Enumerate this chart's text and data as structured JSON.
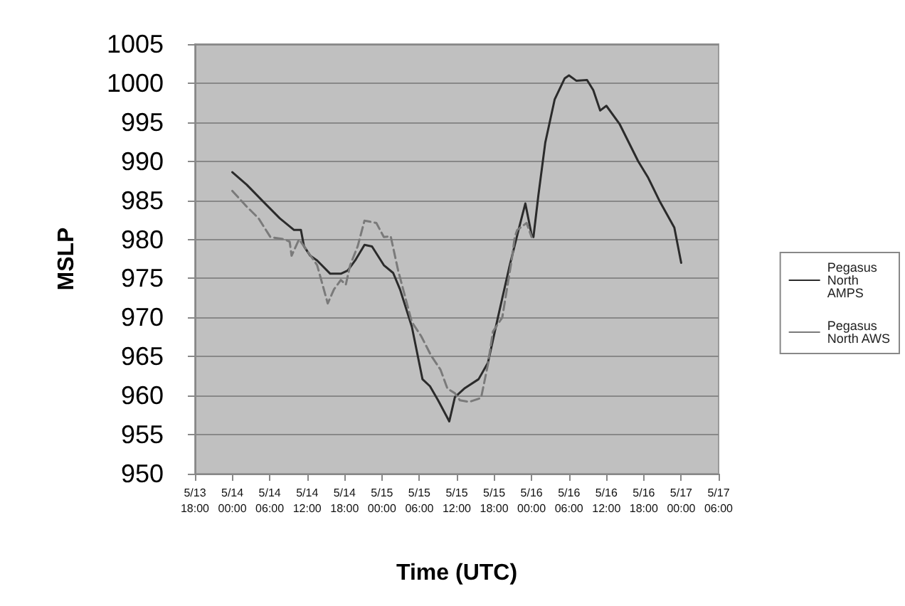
{
  "chart_data": {
    "type": "line",
    "xlabel": "Time (UTC)",
    "ylabel": "MSLP",
    "xlim": [
      "--05-13T18:00",
      "--05-17T06:00"
    ],
    "ylim": [
      950,
      1005
    ],
    "xticks": [
      {
        "value": "--05-13T18:00",
        "label": "5/13\n18:00"
      },
      {
        "value": "--05-14T00:00",
        "label": "5/14\n00:00"
      },
      {
        "value": "--05-14T06:00",
        "label": "5/14\n06:00"
      },
      {
        "value": "--05-14T12:00",
        "label": "5/14\n12:00"
      },
      {
        "value": "--05-14T18:00",
        "label": "5/14\n18:00"
      },
      {
        "value": "--05-15T00:00",
        "label": "5/15\n00:00"
      },
      {
        "value": "--05-15T06:00",
        "label": "5/15\n06:00"
      },
      {
        "value": "--05-15T12:00",
        "label": "5/15\n12:00"
      },
      {
        "value": "--05-15T18:00",
        "label": "5/15\n18:00"
      },
      {
        "value": "--05-16T00:00",
        "label": "5/16\n00:00"
      },
      {
        "value": "--05-16T06:00",
        "label": "5/16\n06:00"
      },
      {
        "value": "--05-16T12:00",
        "label": "5/16\n12:00"
      },
      {
        "value": "--05-16T18:00",
        "label": "5/16\n18:00"
      },
      {
        "value": "--05-17T00:00",
        "label": "5/17\n00:00"
      },
      {
        "value": "--05-17T06:00",
        "label": "5/17\n06:00"
      }
    ],
    "yticks": [
      950,
      955,
      960,
      965,
      970,
      975,
      980,
      985,
      990,
      995,
      1000,
      1005
    ],
    "grid": "y",
    "legend": "right",
    "marker": "none",
    "series": [
      {
        "name": "Pegasus North AMPS",
        "color": "#2b2b2b",
        "line_style": "solid",
        "x": [
          "--05-14T00:00",
          "--05-14T02:18",
          "--05-14T05:00",
          "--05-14T07:36",
          "--05-14T09:54",
          "--05-14T11:00",
          "--05-14T11:30",
          "--05-14T12:30",
          "--05-14T13:36",
          "--05-14T15:42",
          "--05-14T17:24",
          "--05-14T18:30",
          "--05-14T19:42",
          "--05-14T21:12",
          "--05-14T22:24",
          "--05-15T00:18",
          "--05-15T01:48",
          "--05-15T02:54",
          "--05-15T04:48",
          "--05-15T06:30",
          "--05-15T07:42",
          "--05-15T09:00",
          "--05-15T10:12",
          "--05-15T10:48",
          "--05-15T11:42",
          "--05-15T13:12",
          "--05-15T15:30",
          "--05-15T17:00",
          "--05-15T18:36",
          "--05-15T20:30",
          "--05-15T22:00",
          "--05-15T23:00",
          "--05-16T00:00",
          "--05-16T00:18",
          "--05-16T01:06",
          "--05-16T02:12",
          "--05-16T03:42",
          "--05-16T05:18",
          "--05-16T06:00",
          "--05-16T07:12",
          "--05-16T08:54",
          "--05-16T09:54",
          "--05-16T11:00",
          "--05-16T12:00",
          "--05-16T14:06",
          "--05-16T17:06",
          "--05-16T18:42",
          "--05-16T20:36",
          "--05-16T22:54",
          "--05-17T00:00"
        ],
        "values": [
          988.6,
          987.0,
          984.8,
          982.7,
          981.2,
          981.2,
          979.1,
          977.9,
          977.3,
          975.6,
          975.6,
          976.0,
          977.3,
          979.3,
          979.1,
          976.7,
          975.7,
          973.6,
          968.8,
          962.1,
          961.2,
          959.4,
          957.6,
          956.7,
          959.8,
          960.9,
          962.1,
          964.2,
          970.0,
          976.7,
          981.5,
          984.6,
          980.6,
          980.3,
          985.7,
          992.4,
          997.9,
          1000.6,
          1001.0,
          1000.3,
          1000.4,
          999.1,
          996.5,
          997.1,
          994.8,
          990.0,
          987.9,
          984.8,
          981.5,
          977.0
        ]
      },
      {
        "name": "Pegasus North AWS",
        "color": "#7a7a7a",
        "line_style": "dashed",
        "x": [
          "--05-14T00:00",
          "--05-14T02:18",
          "--05-14T04:12",
          "--05-14T06:06",
          "--05-14T08:24",
          "--05-14T09:12",
          "--05-14T09:30",
          "--05-14T10:42",
          "--05-14T11:30",
          "--05-14T13:36",
          "--05-14T15:18",
          "--05-14T16:18",
          "--05-14T17:24",
          "--05-14T18:12",
          "--05-14T18:54",
          "--05-14T20:06",
          "--05-14T21:12",
          "--05-14T23:06",
          "--05-15T00:18",
          "--05-15T01:24",
          "--05-15T02:36",
          "--05-15T04:48",
          "--05-15T06:18",
          "--05-15T07:54",
          "--05-15T09:24",
          "--05-15T10:30",
          "--05-15T11:42",
          "--05-15T12:30",
          "--05-15T14:00",
          "--05-15T15:54",
          "--05-15T17:00",
          "--05-15T17:48",
          "--05-15T19:18",
          "--05-15T20:48",
          "--05-15T21:18",
          "--05-15T21:42",
          "--05-15T23:12",
          "--05-16T00:00"
        ],
        "values": [
          986.2,
          984.2,
          982.7,
          980.3,
          980.0,
          979.7,
          977.9,
          980.0,
          979.1,
          976.7,
          971.8,
          973.6,
          974.8,
          974.2,
          976.7,
          979.1,
          982.4,
          982.1,
          980.3,
          980.4,
          976.0,
          969.4,
          967.6,
          965.1,
          963.3,
          960.9,
          960.3,
          959.4,
          959.2,
          959.7,
          964.0,
          968.2,
          970.0,
          977.3,
          980.3,
          981.2,
          982.1,
          980.3
        ]
      }
    ]
  }
}
